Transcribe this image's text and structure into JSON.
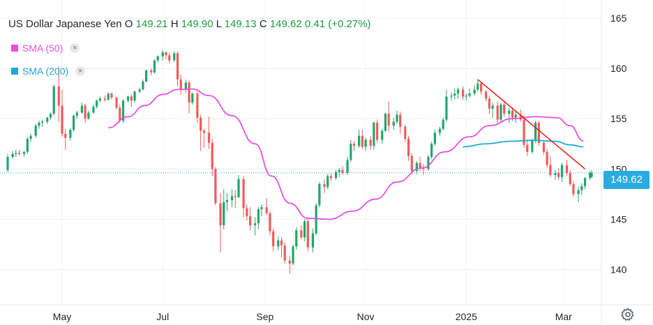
{
  "header": {
    "symbol": "US Dollar Japanese Yen",
    "open_label": "O",
    "open": "149.21",
    "high_label": "H",
    "high": "149.90",
    "low_label": "L",
    "low": "149.13",
    "close_label": "C",
    "close": "149.62",
    "change": "0.41 (+0.27%)"
  },
  "legend": [
    {
      "label": "SMA (50)",
      "color": "#e84fe5",
      "close": "×"
    },
    {
      "label": "SMA (200)",
      "color": "#1fa8d6",
      "close": "×"
    }
  ],
  "colors": {
    "up": "#21a56a",
    "down": "#ef5b5b",
    "sma50": "#e84fe5",
    "sma200": "#1fa8d6",
    "trendline": "#e3271a",
    "price_tag": "#29abe2"
  },
  "price_tag": "149.62",
  "settings_icon": "gear-icon",
  "chart_data": {
    "type": "candlestick",
    "title": "US Dollar Japanese Yen",
    "x_axis": {
      "ticks": [
        "May",
        "Jul",
        "Sep",
        "Nov",
        "2025",
        "Mar"
      ]
    },
    "y_axis": {
      "position": "right",
      "ticks": [
        140,
        145,
        150,
        155,
        160,
        165
      ],
      "ylim": [
        136.5,
        166.8
      ]
    },
    "grid": true,
    "last_price": 149.62,
    "series": [
      {
        "name": "SMA (50)",
        "points": [
          [
            "2024-05-29",
            154.1
          ],
          [
            "2024-06-10",
            155.2
          ],
          [
            "2024-06-20",
            156.3
          ],
          [
            "2024-07-01",
            157.4
          ],
          [
            "2024-07-10",
            157.9
          ],
          [
            "2024-07-19",
            157.95
          ],
          [
            "2024-07-29",
            157.3
          ],
          [
            "2024-08-12",
            155.3
          ],
          [
            "2024-08-26",
            152.5
          ],
          [
            "2024-09-05",
            149.3
          ],
          [
            "2024-09-16",
            146.6
          ],
          [
            "2024-09-27",
            145.1
          ],
          [
            "2024-10-10",
            145.0
          ],
          [
            "2024-10-24",
            145.8
          ],
          [
            "2024-11-07",
            147.0
          ],
          [
            "2024-11-20",
            148.7
          ],
          [
            "2024-12-05",
            150.1
          ],
          [
            "2024-12-19",
            151.7
          ],
          [
            "2025-01-03",
            153.2
          ],
          [
            "2025-01-15",
            154.3
          ],
          [
            "2025-01-29",
            155.0
          ],
          [
            "2025-02-12",
            155.2
          ],
          [
            "2025-02-25",
            155.1
          ],
          [
            "2025-03-05",
            154.3
          ],
          [
            "2025-03-13",
            152.8
          ]
        ]
      },
      {
        "name": "SMA (200)",
        "points": [
          [
            "2024-12-30",
            152.2
          ],
          [
            "2025-01-13",
            152.5
          ],
          [
            "2025-01-27",
            152.75
          ],
          [
            "2025-02-10",
            152.85
          ],
          [
            "2025-02-24",
            152.75
          ],
          [
            "2025-03-05",
            152.4
          ],
          [
            "2025-03-13",
            152.2
          ]
        ]
      }
    ],
    "trendline": {
      "start": [
        "2025-01-08",
        158.9
      ],
      "end": [
        "2025-03-14",
        150.0
      ]
    },
    "candles": [
      [
        "2024-03-29",
        149.9,
        151.5,
        149.7,
        151.2
      ],
      [
        "2024-04-01",
        151.2,
        151.8,
        151.0,
        151.5
      ],
      [
        "2024-04-03",
        151.5,
        151.9,
        151.2,
        151.6
      ],
      [
        "2024-04-05",
        151.6,
        151.9,
        151.3,
        151.5
      ],
      [
        "2024-04-08",
        151.5,
        151.8,
        151.2,
        151.7
      ],
      [
        "2024-04-10",
        151.7,
        153.2,
        151.5,
        153.0
      ],
      [
        "2024-04-12",
        153.0,
        153.5,
        152.7,
        153.3
      ],
      [
        "2024-04-15",
        153.3,
        154.5,
        153.1,
        154.3
      ],
      [
        "2024-04-17",
        154.3,
        154.8,
        154.0,
        154.6
      ],
      [
        "2024-04-19",
        154.6,
        154.9,
        154.2,
        154.7
      ],
      [
        "2024-04-22",
        154.7,
        155.2,
        154.5,
        155.1
      ],
      [
        "2024-04-24",
        155.1,
        155.6,
        154.9,
        155.5
      ],
      [
        "2024-04-26",
        155.5,
        158.4,
        155.3,
        158.2
      ],
      [
        "2024-04-29",
        158.2,
        160.2,
        154.7,
        156.3
      ],
      [
        "2024-05-01",
        156.3,
        157.9,
        153.2,
        153.5
      ],
      [
        "2024-05-03",
        153.5,
        154.0,
        151.9,
        153.1
      ],
      [
        "2024-05-06",
        153.1,
        154.1,
        152.8,
        153.9
      ],
      [
        "2024-05-08",
        153.9,
        155.4,
        153.7,
        155.3
      ],
      [
        "2024-05-10",
        155.3,
        155.8,
        155.0,
        155.6
      ],
      [
        "2024-05-13",
        155.6,
        156.6,
        155.5,
        156.3
      ],
      [
        "2024-05-15",
        156.3,
        156.5,
        154.6,
        155.0
      ],
      [
        "2024-05-17",
        155.0,
        155.8,
        154.9,
        155.6
      ],
      [
        "2024-05-20",
        155.6,
        156.4,
        155.5,
        156.2
      ],
      [
        "2024-05-22",
        156.2,
        156.9,
        156.0,
        156.8
      ],
      [
        "2024-05-24",
        156.8,
        157.2,
        156.6,
        157.0
      ],
      [
        "2024-05-27",
        157.0,
        157.3,
        156.7,
        156.9
      ],
      [
        "2024-05-29",
        156.9,
        157.6,
        156.8,
        157.5
      ],
      [
        "2024-05-31",
        157.5,
        157.6,
        156.9,
        157.1
      ],
      [
        "2024-06-03",
        157.1,
        157.2,
        155.9,
        156.1
      ],
      [
        "2024-06-05",
        156.1,
        156.4,
        154.6,
        154.8
      ],
      [
        "2024-06-07",
        154.8,
        156.9,
        154.6,
        156.8
      ],
      [
        "2024-06-10",
        156.8,
        157.3,
        156.6,
        157.2
      ],
      [
        "2024-06-12",
        157.2,
        157.4,
        156.2,
        156.8
      ],
      [
        "2024-06-14",
        156.8,
        157.8,
        156.6,
        157.7
      ],
      [
        "2024-06-17",
        157.7,
        158.1,
        157.5,
        157.9
      ],
      [
        "2024-06-19",
        157.9,
        158.9,
        157.8,
        158.7
      ],
      [
        "2024-06-21",
        158.7,
        159.9,
        158.6,
        159.8
      ],
      [
        "2024-06-24",
        159.8,
        160.0,
        159.3,
        159.6
      ],
      [
        "2024-06-26",
        159.6,
        160.9,
        159.5,
        160.8
      ],
      [
        "2024-06-28",
        160.8,
        161.3,
        160.6,
        161.2
      ],
      [
        "2024-07-01",
        161.2,
        161.8,
        160.8,
        161.6
      ],
      [
        "2024-07-03",
        161.6,
        161.7,
        160.9,
        161.3
      ],
      [
        "2024-07-05",
        161.3,
        161.6,
        160.5,
        160.8
      ],
      [
        "2024-07-08",
        160.8,
        161.7,
        160.6,
        161.5
      ],
      [
        "2024-07-10",
        161.5,
        161.7,
        158.2,
        158.9
      ],
      [
        "2024-07-12",
        158.9,
        159.4,
        157.4,
        157.9
      ],
      [
        "2024-07-15",
        157.9,
        158.9,
        157.6,
        158.6
      ],
      [
        "2024-07-17",
        158.6,
        158.8,
        155.5,
        156.6
      ],
      [
        "2024-07-19",
        156.6,
        157.6,
        156.4,
        157.5
      ],
      [
        "2024-07-22",
        157.5,
        157.7,
        154.6,
        155.1
      ],
      [
        "2024-07-24",
        155.1,
        155.4,
        151.8,
        153.8
      ],
      [
        "2024-07-26",
        153.8,
        154.0,
        152.1,
        153.6
      ],
      [
        "2024-07-29",
        153.6,
        155.2,
        152.0,
        152.6
      ],
      [
        "2024-07-31",
        152.6,
        153.0,
        149.3,
        150.0
      ],
      [
        "2024-08-02",
        150.0,
        150.2,
        146.4,
        146.6
      ],
      [
        "2024-08-05",
        146.6,
        147.6,
        141.7,
        144.4
      ],
      [
        "2024-08-07",
        144.4,
        148.0,
        144.0,
        146.7
      ],
      [
        "2024-08-09",
        146.7,
        147.6,
        145.8,
        146.9
      ],
      [
        "2024-08-12",
        146.9,
        148.0,
        146.2,
        147.3
      ],
      [
        "2024-08-14",
        147.3,
        147.9,
        146.1,
        147.2
      ],
      [
        "2024-08-16",
        147.2,
        149.4,
        147.1,
        149.0
      ],
      [
        "2024-08-19",
        149.0,
        149.3,
        145.2,
        146.1
      ],
      [
        "2024-08-21",
        146.1,
        146.5,
        144.9,
        145.3
      ],
      [
        "2024-08-23",
        145.3,
        146.2,
        143.9,
        144.4
      ],
      [
        "2024-08-26",
        144.4,
        145.2,
        143.4,
        144.6
      ],
      [
        "2024-08-28",
        144.6,
        146.2,
        144.0,
        146.0
      ],
      [
        "2024-08-30",
        146.0,
        146.5,
        145.3,
        146.2
      ],
      [
        "2024-09-02",
        146.2,
        147.1,
        145.4,
        145.6
      ],
      [
        "2024-09-04",
        145.6,
        145.8,
        143.4,
        143.8
      ],
      [
        "2024-09-06",
        143.8,
        144.1,
        141.8,
        142.3
      ],
      [
        "2024-09-09",
        142.3,
        143.3,
        141.9,
        142.9
      ],
      [
        "2024-09-11",
        142.9,
        143.2,
        141.2,
        142.4
      ],
      [
        "2024-09-13",
        142.4,
        142.7,
        140.6,
        140.9
      ],
      [
        "2024-09-16",
        140.9,
        141.4,
        139.6,
        140.6
      ],
      [
        "2024-09-18",
        140.6,
        142.5,
        140.4,
        142.3
      ],
      [
        "2024-09-20",
        142.3,
        144.2,
        142.0,
        143.9
      ],
      [
        "2024-09-23",
        143.9,
        144.4,
        143.0,
        143.2
      ],
      [
        "2024-09-25",
        143.2,
        145.0,
        142.8,
        144.8
      ],
      [
        "2024-09-27",
        144.8,
        145.2,
        141.8,
        142.2
      ],
      [
        "2024-09-30",
        142.2,
        144.1,
        141.7,
        143.6
      ],
      [
        "2024-10-02",
        143.6,
        146.6,
        143.4,
        146.4
      ],
      [
        "2024-10-04",
        146.4,
        148.7,
        146.2,
        148.5
      ],
      [
        "2024-10-07",
        148.5,
        149.0,
        147.6,
        148.2
      ],
      [
        "2024-10-09",
        148.2,
        149.5,
        148.0,
        149.3
      ],
      [
        "2024-10-11",
        149.3,
        149.6,
        148.8,
        149.1
      ],
      [
        "2024-10-14",
        149.1,
        149.9,
        148.9,
        149.7
      ],
      [
        "2024-10-16",
        149.7,
        150.1,
        149.2,
        149.9
      ],
      [
        "2024-10-18",
        149.9,
        150.3,
        149.4,
        149.6
      ],
      [
        "2024-10-21",
        149.6,
        151.2,
        149.4,
        150.9
      ],
      [
        "2024-10-23",
        150.9,
        152.9,
        150.7,
        152.5
      ],
      [
        "2024-10-25",
        152.5,
        152.8,
        151.8,
        152.3
      ],
      [
        "2024-10-28",
        152.3,
        153.9,
        152.1,
        153.3
      ],
      [
        "2024-10-30",
        153.3,
        153.9,
        152.0,
        152.2
      ],
      [
        "2024-11-01",
        152.2,
        153.1,
        151.8,
        152.9
      ],
      [
        "2024-11-04",
        152.9,
        153.3,
        151.9,
        152.3
      ],
      [
        "2024-11-06",
        152.3,
        154.7,
        151.9,
        154.6
      ],
      [
        "2024-11-08",
        154.6,
        154.9,
        152.6,
        152.9
      ],
      [
        "2024-11-11",
        152.9,
        154.0,
        152.5,
        153.8
      ],
      [
        "2024-11-13",
        153.8,
        155.6,
        153.7,
        155.5
      ],
      [
        "2024-11-15",
        155.5,
        156.7,
        153.7,
        154.3
      ],
      [
        "2024-11-18",
        154.3,
        155.1,
        153.9,
        154.7
      ],
      [
        "2024-11-20",
        154.7,
        155.8,
        154.5,
        155.4
      ],
      [
        "2024-11-22",
        155.4,
        155.7,
        153.5,
        154.2
      ],
      [
        "2024-11-25",
        154.2,
        154.4,
        152.7,
        153.0
      ],
      [
        "2024-11-27",
        153.0,
        153.3,
        150.8,
        151.3
      ],
      [
        "2024-11-29",
        151.3,
        151.6,
        149.5,
        149.8
      ],
      [
        "2024-12-02",
        149.8,
        150.8,
        149.5,
        150.6
      ],
      [
        "2024-12-04",
        150.6,
        151.2,
        149.8,
        150.1
      ],
      [
        "2024-12-06",
        150.1,
        150.5,
        149.4,
        150.0
      ],
      [
        "2024-12-09",
        150.0,
        151.4,
        149.8,
        151.2
      ],
      [
        "2024-12-11",
        151.2,
        152.7,
        151.0,
        152.5
      ],
      [
        "2024-12-13",
        152.5,
        153.9,
        152.3,
        153.6
      ],
      [
        "2024-12-16",
        153.6,
        154.2,
        153.3,
        154.0
      ],
      [
        "2024-12-18",
        154.0,
        155.1,
        153.8,
        154.9
      ],
      [
        "2024-12-20",
        154.9,
        157.9,
        154.7,
        157.2
      ],
      [
        "2024-12-23",
        157.2,
        157.6,
        156.8,
        157.3
      ],
      [
        "2024-12-25",
        157.3,
        158.0,
        156.9,
        157.5
      ],
      [
        "2024-12-27",
        157.5,
        158.1,
        157.0,
        157.9
      ],
      [
        "2024-12-30",
        157.9,
        158.2,
        156.9,
        157.2
      ],
      [
        "2025-01-01",
        157.2,
        157.5,
        156.8,
        157.3
      ],
      [
        "2025-01-03",
        157.3,
        158.0,
        157.1,
        157.5
      ],
      [
        "2025-01-06",
        157.5,
        158.3,
        157.3,
        157.9
      ],
      [
        "2025-01-08",
        157.9,
        158.9,
        157.7,
        158.5
      ],
      [
        "2025-01-10",
        158.5,
        158.7,
        157.4,
        157.7
      ],
      [
        "2025-01-13",
        157.7,
        157.9,
        156.7,
        157.0
      ],
      [
        "2025-01-15",
        157.0,
        157.3,
        155.5,
        156.0
      ],
      [
        "2025-01-17",
        156.0,
        156.6,
        155.1,
        156.3
      ],
      [
        "2025-01-20",
        156.3,
        156.7,
        154.4,
        154.9
      ],
      [
        "2025-01-22",
        154.9,
        156.6,
        154.7,
        156.4
      ],
      [
        "2025-01-24",
        156.4,
        156.8,
        155.2,
        155.5
      ],
      [
        "2025-01-27",
        155.5,
        156.1,
        154.6,
        155.8
      ],
      [
        "2025-01-29",
        155.8,
        156.0,
        154.8,
        155.1
      ],
      [
        "2025-01-31",
        155.1,
        155.8,
        154.6,
        155.4
      ],
      [
        "2025-02-03",
        155.4,
        155.9,
        154.7,
        154.9
      ],
      [
        "2025-02-05",
        154.9,
        155.4,
        152.1,
        152.4
      ],
      [
        "2025-02-07",
        152.4,
        152.8,
        151.3,
        151.7
      ],
      [
        "2025-02-10",
        151.7,
        153.0,
        151.5,
        152.8
      ],
      [
        "2025-02-12",
        152.8,
        154.8,
        152.6,
        154.6
      ],
      [
        "2025-02-14",
        154.6,
        154.8,
        152.3,
        152.6
      ],
      [
        "2025-02-17",
        152.6,
        152.9,
        151.4,
        151.7
      ],
      [
        "2025-02-19",
        151.7,
        152.0,
        150.1,
        150.4
      ],
      [
        "2025-02-21",
        150.4,
        151.3,
        149.2,
        149.4
      ],
      [
        "2025-02-24",
        149.4,
        149.9,
        148.9,
        149.6
      ],
      [
        "2025-02-26",
        149.6,
        150.1,
        148.9,
        149.2
      ],
      [
        "2025-02-28",
        149.2,
        150.6,
        148.7,
        150.4
      ],
      [
        "2025-03-03",
        150.4,
        150.9,
        149.3,
        149.6
      ],
      [
        "2025-03-05",
        149.6,
        149.9,
        148.3,
        148.5
      ],
      [
        "2025-03-07",
        148.5,
        148.8,
        147.2,
        147.5
      ],
      [
        "2025-03-10",
        147.5,
        148.2,
        146.7,
        147.9
      ],
      [
        "2025-03-12",
        147.9,
        148.6,
        147.4,
        148.3
      ],
      [
        "2025-03-14",
        148.3,
        149.2,
        148.0,
        149.1
      ],
      [
        "2025-03-17",
        149.1,
        149.8,
        148.9,
        149.6
      ],
      [
        "2025-03-18",
        149.21,
        149.9,
        149.13,
        149.62
      ]
    ]
  }
}
